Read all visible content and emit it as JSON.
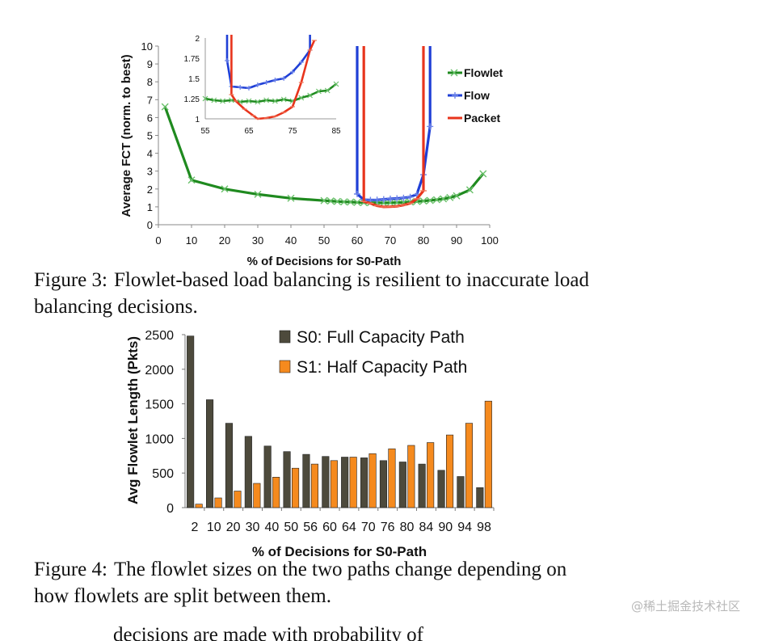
{
  "figure3": {
    "caption_label": "Figure 3:",
    "caption_text": "Flowlet-based load balancing is resilient to inaccurate load balancing decisions.",
    "chart_data": {
      "type": "line",
      "xlabel": "% of Decisions for S0-Path",
      "ylabel": "Average FCT (norm. to best)",
      "xlim": [
        0,
        100
      ],
      "ylim": [
        0,
        10
      ],
      "x_ticks": [
        "0",
        "10",
        "20",
        "30",
        "40",
        "50",
        "60",
        "70",
        "80",
        "90",
        "100"
      ],
      "y_ticks": [
        "0",
        "1",
        "2",
        "3",
        "4",
        "5",
        "6",
        "7",
        "8",
        "9",
        "10"
      ],
      "series": [
        {
          "name": "Flowlet",
          "color": "#1f8a1f",
          "x": [
            2,
            10,
            20,
            30,
            40,
            50,
            52,
            54,
            56,
            58,
            60,
            62,
            64,
            66,
            68,
            70,
            72,
            74,
            76,
            78,
            80,
            82,
            84,
            86,
            88,
            90,
            94,
            98
          ],
          "y": [
            6.6,
            2.5,
            2.0,
            1.7,
            1.48,
            1.35,
            1.33,
            1.3,
            1.28,
            1.27,
            1.25,
            1.24,
            1.23,
            1.23,
            1.22,
            1.23,
            1.24,
            1.25,
            1.27,
            1.3,
            1.33,
            1.36,
            1.4,
            1.45,
            1.52,
            1.62,
            1.95,
            2.85
          ]
        },
        {
          "name": "Flow",
          "color": "#1f3fd6",
          "x": [
            60,
            60,
            62,
            64,
            66,
            68,
            70,
            72,
            74,
            76,
            78,
            80,
            82,
            82
          ],
          "y": [
            10.5,
            1.72,
            1.4,
            1.38,
            1.39,
            1.42,
            1.45,
            1.47,
            1.5,
            1.55,
            1.7,
            2.8,
            5.5,
            10.5
          ]
        },
        {
          "name": "Packet",
          "color": "#e8341c",
          "x": [
            62,
            62,
            64,
            66,
            68,
            70,
            72,
            74,
            76,
            78,
            80,
            80
          ],
          "y": [
            10.5,
            1.3,
            1.2,
            1.06,
            1.0,
            1.01,
            1.03,
            1.1,
            1.2,
            1.45,
            1.9,
            10.5
          ]
        }
      ],
      "inset": {
        "xlim": [
          55,
          85
        ],
        "ylim": [
          1,
          2
        ],
        "x_ticks": [
          "55",
          "65",
          "75",
          "85"
        ],
        "y_ticks": [
          "1",
          "1.25",
          "1.5",
          "1.75",
          "2"
        ],
        "series": [
          {
            "name": "Flowlet",
            "x": [
              55,
              57,
              59,
              61,
              63,
              65,
              67,
              69,
              71,
              73,
              75,
              77,
              79,
              81,
              83,
              85
            ],
            "y": [
              1.25,
              1.23,
              1.22,
              1.23,
              1.21,
              1.22,
              1.21,
              1.23,
              1.22,
              1.24,
              1.22,
              1.26,
              1.29,
              1.34,
              1.35,
              1.43
            ]
          },
          {
            "name": "Flow",
            "x": [
              60,
              60,
              61,
              63,
              65,
              67,
              69,
              71,
              73,
              75,
              77,
              79,
              79
            ],
            "y": [
              2.05,
              1.72,
              1.4,
              1.39,
              1.38,
              1.42,
              1.45,
              1.48,
              1.5,
              1.58,
              1.7,
              1.85,
              2.05
            ]
          },
          {
            "name": "Packet",
            "x": [
              61,
              61,
              62,
              64,
              66,
              67,
              69,
              71,
              73,
              75,
              77,
              79,
              80
            ],
            "y": [
              2.05,
              1.3,
              1.22,
              1.12,
              1.04,
              1.0,
              1.01,
              1.03,
              1.08,
              1.15,
              1.45,
              1.85,
              1.97
            ]
          }
        ]
      }
    }
  },
  "figure4": {
    "caption_label": "Figure 4:",
    "caption_text": "The flowlet sizes on the two paths change depending on how flowlets are split between them.",
    "chart_data": {
      "type": "bar",
      "xlabel": "% of Decisions for S0-Path",
      "ylabel": "Avg Flowlet Length (Pkts)",
      "ylim": [
        0,
        2500
      ],
      "y_ticks": [
        "0",
        "500",
        "1000",
        "1500",
        "2000",
        "2500"
      ],
      "categories": [
        "2",
        "10",
        "20",
        "30",
        "40",
        "50",
        "56",
        "60",
        "64",
        "70",
        "76",
        "80",
        "84",
        "90",
        "94",
        "98"
      ],
      "series": [
        {
          "name": "S0: Full Capacity Path",
          "color": "#4d4a3c",
          "values": [
            2480,
            1560,
            1220,
            1030,
            890,
            810,
            770,
            740,
            730,
            720,
            680,
            660,
            630,
            540,
            450,
            290
          ]
        },
        {
          "name": "S1: Half Capacity Path",
          "color": "#f58a1e",
          "values": [
            50,
            140,
            240,
            350,
            440,
            570,
            630,
            680,
            730,
            780,
            850,
            900,
            940,
            1050,
            1220,
            1540
          ]
        }
      ]
    }
  },
  "footer": {
    "watermark": "@稀土掘金技术社区",
    "cut_text": "decisions are made with probability of"
  }
}
